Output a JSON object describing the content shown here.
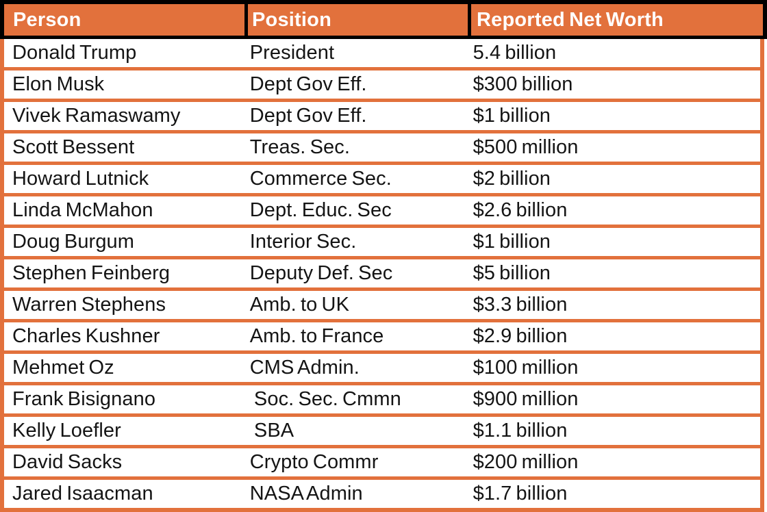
{
  "table": {
    "columns": [
      {
        "id": "person",
        "label": "Person"
      },
      {
        "id": "position",
        "label": "Position"
      },
      {
        "id": "net_worth",
        "label": "Reported Net Worth"
      }
    ],
    "rows": [
      {
        "person": "Donald Trump",
        "position": "President",
        "net_worth": "5.4 billion"
      },
      {
        "person": "Elon Musk",
        "position": "Dept Gov Eff.",
        "net_worth": "$300 billion"
      },
      {
        "person": "Vivek Ramaswamy",
        "position": "Dept Gov Eff.",
        "net_worth": "$1 billion"
      },
      {
        "person": "Scott Bessent",
        "position": "Treas. Sec.",
        "net_worth": "$500 million"
      },
      {
        "person": "Howard Lutnick",
        "position": "Commerce Sec.",
        "net_worth": "$2 billion"
      },
      {
        "person": "Linda McMahon",
        "position": "Dept. Educ. Sec",
        "net_worth": "$2.6 billion"
      },
      {
        "person": "Doug Burgum",
        "position": "Interior Sec.",
        "net_worth": "$1 billion"
      },
      {
        "person": "Stephen Feinberg",
        "position": "Deputy Def. Sec",
        "net_worth": "$5 billion"
      },
      {
        "person": "Warren Stephens",
        "position": "Amb. to UK",
        "net_worth": "$3.3 billion"
      },
      {
        "person": "Charles Kushner",
        "position": "Amb. to France",
        "net_worth": "$2.9 billion"
      },
      {
        "person": "Mehmet Oz",
        "position": "CMS Admin.",
        "net_worth": "$100 million"
      },
      {
        "person": "Frank Bisignano",
        "position": " Soc. Sec. Cmmn",
        "net_worth": "$900 million"
      },
      {
        "person": "Kelly Loefler",
        "position": " SBA",
        "net_worth": "$1.1 billion"
      },
      {
        "person": "David Sacks",
        "position": "Crypto Commr",
        "net_worth": "$200 million"
      },
      {
        "person": "Jared Isaacman",
        "position": "NASA Admin",
        "net_worth": "$1.7 billion"
      }
    ],
    "colors": {
      "accent_orange": "#E2713C",
      "header_border": "#000000",
      "header_text": "#FFFFFF",
      "body_text": "#141414",
      "row_background": "#FFFFFF"
    }
  }
}
